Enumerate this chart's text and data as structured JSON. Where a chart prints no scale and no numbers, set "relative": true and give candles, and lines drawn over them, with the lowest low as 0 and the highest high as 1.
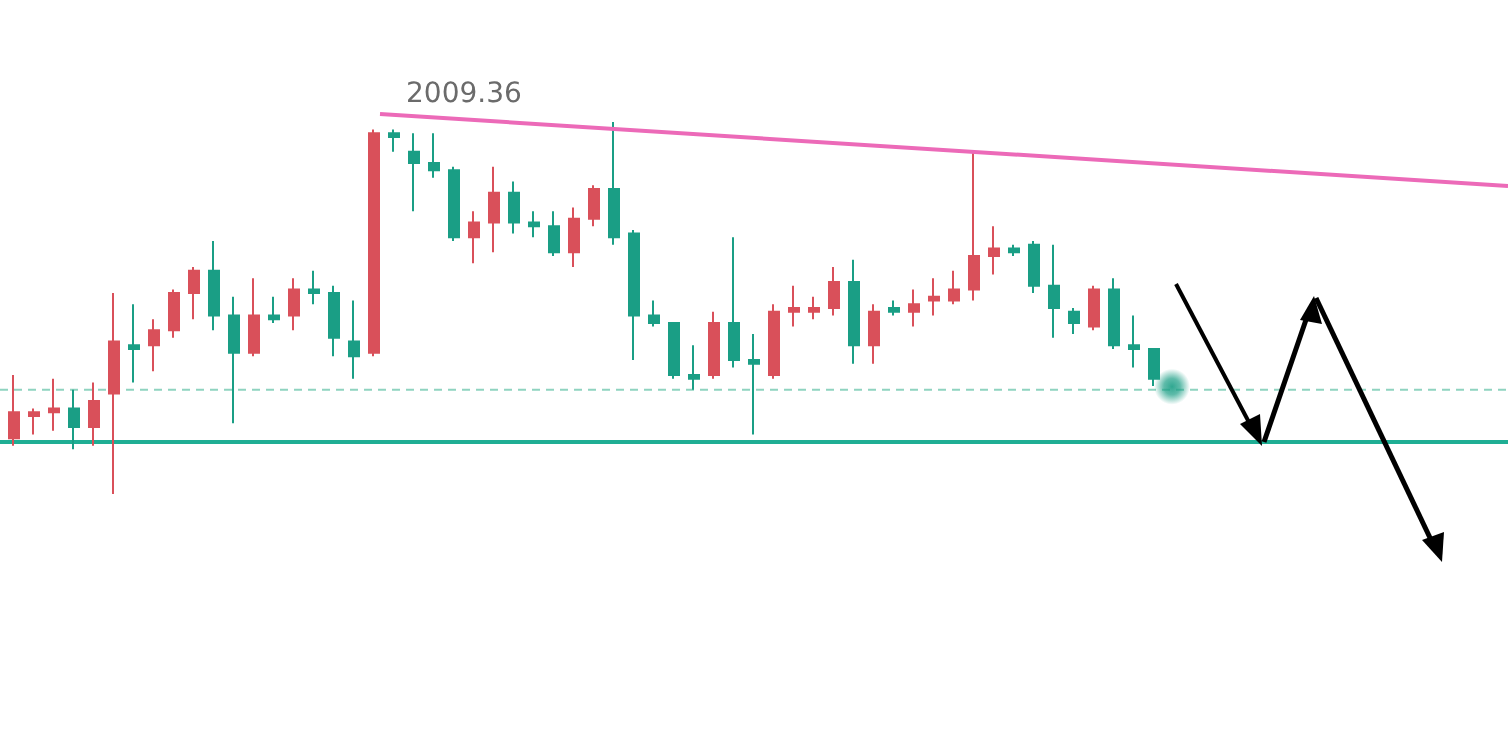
{
  "chart_data": {
    "type": "candlestick",
    "relative": true,
    "grid": false,
    "categories": [
      null,
      null,
      null,
      null,
      null,
      null,
      null,
      null,
      null,
      null,
      null,
      null,
      null,
      null,
      null,
      null,
      null,
      null,
      null,
      null,
      null,
      null,
      null,
      null,
      null,
      null,
      null,
      null,
      null,
      null,
      null,
      null,
      null,
      null,
      null,
      null,
      null,
      null,
      null,
      null,
      null,
      null,
      null,
      null,
      null,
      null,
      null,
      null,
      null,
      null,
      null,
      null,
      null,
      null,
      null,
      null,
      null,
      null
    ],
    "ohlc": [
      [
        0.15,
        0.32,
        0.13,
        0.22
      ],
      [
        0.21,
        0.23,
        0.16,
        0.22
      ],
      [
        0.22,
        0.31,
        0.17,
        0.23
      ],
      [
        0.23,
        0.28,
        0.12,
        0.18
      ],
      [
        0.18,
        0.3,
        0.13,
        0.25
      ],
      [
        0.27,
        0.54,
        0,
        0.41
      ],
      [
        0.4,
        0.51,
        0.3,
        0.39
      ],
      [
        0.4,
        0.47,
        0.33,
        0.44
      ],
      [
        0.44,
        0.55,
        0.42,
        0.54
      ],
      [
        0.54,
        0.61,
        0.47,
        0.6
      ],
      [
        0.6,
        0.68,
        0.44,
        0.48
      ],
      [
        0.48,
        0.53,
        0.19,
        0.38
      ],
      [
        0.38,
        0.58,
        0.37,
        0.48
      ],
      [
        0.48,
        0.53,
        0.46,
        0.47
      ],
      [
        0.48,
        0.58,
        0.44,
        0.55
      ],
      [
        0.55,
        0.6,
        0.51,
        0.54
      ],
      [
        0.54,
        0.56,
        0.37,
        0.42
      ],
      [
        0.41,
        0.52,
        0.31,
        0.37
      ],
      [
        0.38,
        0.98,
        0.37,
        0.97
      ],
      [
        0.97,
        0.98,
        0.92,
        0.96
      ],
      [
        0.92,
        0.97,
        0.76,
        0.89
      ],
      [
        0.89,
        0.97,
        0.85,
        0.87
      ],
      [
        0.87,
        0.88,
        0.68,
        0.69
      ],
      [
        0.69,
        0.76,
        0.62,
        0.73
      ],
      [
        0.73,
        0.88,
        0.65,
        0.81
      ],
      [
        0.81,
        0.84,
        0.7,
        0.73
      ],
      [
        0.73,
        0.76,
        0.69,
        0.72
      ],
      [
        0.72,
        0.76,
        0.64,
        0.65
      ],
      [
        0.65,
        0.77,
        0.61,
        0.74
      ],
      [
        0.74,
        0.83,
        0.72,
        0.82
      ],
      [
        0.82,
        1,
        0.67,
        0.69
      ],
      [
        0.7,
        0.71,
        0.36,
        0.48
      ],
      [
        0.48,
        0.52,
        0.45,
        0.46
      ],
      [
        0.46,
        0.46,
        0.31,
        0.32
      ],
      [
        0.32,
        0.4,
        0.28,
        0.31
      ],
      [
        0.32,
        0.49,
        0.31,
        0.46
      ],
      [
        0.46,
        0.69,
        0.34,
        0.36
      ],
      [
        0.36,
        0.43,
        0.16,
        0.35
      ],
      [
        0.32,
        0.51,
        0.31,
        0.49
      ],
      [
        0.49,
        0.56,
        0.45,
        0.5
      ],
      [
        0.49,
        0.53,
        0.47,
        0.5
      ],
      [
        0.5,
        0.61,
        0.48,
        0.57
      ],
      [
        0.57,
        0.63,
        0.35,
        0.4
      ],
      [
        0.4,
        0.51,
        0.35,
        0.49
      ],
      [
        0.5,
        0.52,
        0.48,
        0.49
      ],
      [
        0.49,
        0.55,
        0.45,
        0.51
      ],
      [
        0.52,
        0.58,
        0.48,
        0.53
      ],
      [
        0.52,
        0.6,
        0.51,
        0.55
      ],
      [
        0.55,
        0.92,
        0.52,
        0.64
      ],
      [
        0.64,
        0.72,
        0.59,
        0.66
      ],
      [
        0.66,
        0.67,
        0.64,
        0.65
      ],
      [
        0.67,
        0.68,
        0.54,
        0.56
      ],
      [
        0.56,
        0.67,
        0.42,
        0.5
      ],
      [
        0.49,
        0.5,
        0.43,
        0.46
      ],
      [
        0.45,
        0.56,
        0.44,
        0.55
      ],
      [
        0.55,
        0.58,
        0.39,
        0.4
      ],
      [
        0.4,
        0.48,
        0.34,
        0.39
      ],
      [
        0.39,
        0.39,
        0.29,
        0.31
      ]
    ],
    "colors": [
      "#d9505a",
      "#d9505a",
      "#d9505a",
      "#1a9e85",
      "#d9505a",
      "#d9505a",
      "#1a9e85",
      "#d9505a",
      "#d9505a",
      "#d9505a",
      "#1a9e85",
      "#1a9e85",
      "#d9505a",
      "#1a9e85",
      "#d9505a",
      "#1a9e85",
      "#1a9e85",
      "#1a9e85",
      "#d9505a",
      "#1a9e85",
      "#1a9e85",
      "#1a9e85",
      "#1a9e85",
      "#d9505a",
      "#d9505a",
      "#1a9e85",
      "#1a9e85",
      "#1a9e85",
      "#d9505a",
      "#d9505a",
      "#1a9e85",
      "#1a9e85",
      "#1a9e85",
      "#1a9e85",
      "#1a9e85",
      "#d9505a",
      "#1a9e85",
      "#1a9e85",
      "#d9505a",
      "#d9505a",
      "#d9505a",
      "#d9505a",
      "#1a9e85",
      "#d9505a",
      "#1a9e85",
      "#d9505a",
      "#d9505a",
      "#d9505a",
      "#d9505a",
      "#d9505a",
      "#1a9e85",
      "#1a9e85",
      "#1a9e85",
      "#1a9e85",
      "#d9505a",
      "#1a9e85",
      "#1a9e85",
      "#1a9e85"
    ],
    "ref_lines": [
      {
        "axis": "y",
        "value": 0.14,
        "color": "#1fae94",
        "line_style": "solid"
      },
      {
        "axis": "y",
        "value": 0.28,
        "color": "#8fd3c0",
        "line_style": "dashed"
      }
    ],
    "annotations": [
      "2009.36"
    ]
  }
}
